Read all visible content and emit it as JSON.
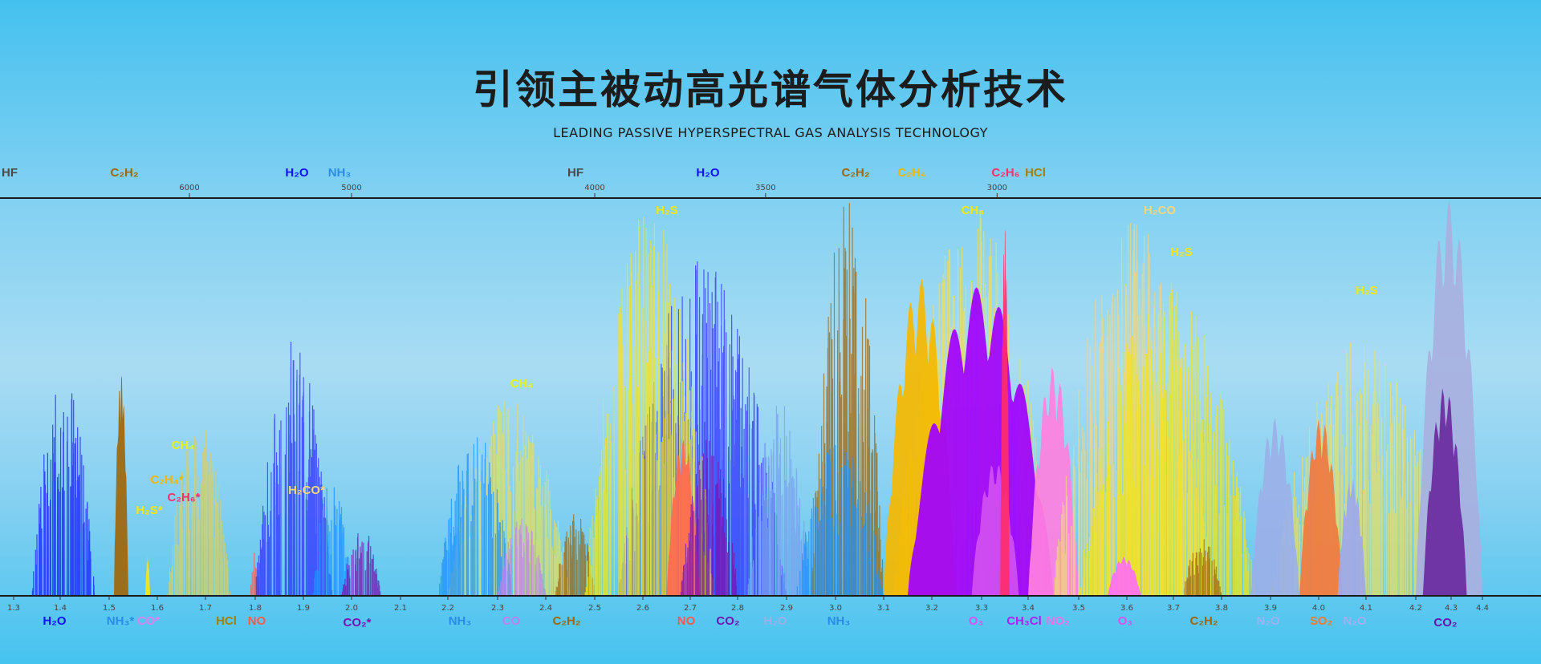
{
  "header": {
    "title": "引领主被动高光谱气体分析技术",
    "subtitle": "LEADING PASSIVE HYPERSPECTRAL GAS ANALYSIS TECHNOLOGY"
  },
  "chart_data": {
    "type": "area",
    "title": "",
    "xlabel": "",
    "ylabel": "",
    "x_axis_bottom": {
      "unit_hidden": "µm",
      "range": [
        1.3,
        4.4
      ],
      "tick_labels": [
        "1.3",
        "1.4",
        "1.5",
        "1.6",
        "1.7",
        "1.8",
        "1.9",
        "2.0",
        "2.1",
        "2.2",
        "2.3",
        "2.4",
        "2.5",
        "2.6",
        "2.7",
        "2.8",
        "2.9",
        "3.0",
        "3.1",
        "3.2",
        "3.3",
        "3.4",
        "3.5",
        "3.6",
        "3.7",
        "3.8",
        "3.9",
        "4.0",
        "4.1",
        "4.2",
        "4.3",
        "4.4"
      ]
    },
    "x_axis_top": {
      "tick_labels": [
        "6000",
        "5000",
        "4000",
        "3500",
        "3000"
      ]
    },
    "y_range": [
      0,
      1
    ],
    "grid": false,
    "bands": [
      {
        "gas": "H2O",
        "color": "#1a1aff",
        "from": 1.34,
        "to": 1.47,
        "peak": 0.58,
        "style": "lines"
      },
      {
        "gas": "C2H2",
        "color": "#a0660a",
        "from": 1.51,
        "to": 1.54,
        "peak": 0.57,
        "style": "solid"
      },
      {
        "gas": "H2S",
        "color": "#f5e60f",
        "from": 1.575,
        "to": 1.585,
        "peak": 0.1,
        "style": "solid"
      },
      {
        "gas": "CH4",
        "color": "#d8d060",
        "from": 1.62,
        "to": 1.75,
        "peak": 0.45,
        "style": "lines"
      },
      {
        "gas": "NO",
        "color": "#ff5a4a",
        "from": 1.79,
        "to": 1.81,
        "peak": 0.12,
        "style": "lines"
      },
      {
        "gas": "H2O",
        "color": "#3030ff",
        "from": 1.8,
        "to": 1.96,
        "peak": 0.65,
        "style": "lines"
      },
      {
        "gas": "NH3",
        "color": "#1e90ff",
        "from": 1.92,
        "to": 2.0,
        "peak": 0.3,
        "style": "lines"
      },
      {
        "gas": "CO2",
        "color": "#7a10b0",
        "from": 1.98,
        "to": 2.06,
        "peak": 0.18,
        "style": "lines"
      },
      {
        "gas": "CH4",
        "color": "#e0e060",
        "from": 2.2,
        "to": 2.45,
        "peak": 0.5,
        "style": "lines"
      },
      {
        "gas": "NH3",
        "color": "#1e90ff",
        "from": 2.18,
        "to": 2.33,
        "peak": 0.42,
        "style": "lines"
      },
      {
        "gas": "CO",
        "color": "#c080f0",
        "from": 2.3,
        "to": 2.4,
        "peak": 0.2,
        "style": "lines"
      },
      {
        "gas": "C2H2",
        "color": "#a0660a",
        "from": 2.42,
        "to": 2.5,
        "peak": 0.22,
        "style": "lines"
      },
      {
        "gas": "H2O",
        "color": "#3030ff",
        "from": 2.55,
        "to": 2.9,
        "peak": 0.85,
        "style": "lines"
      },
      {
        "gas": "H2S",
        "color": "#f5e60f",
        "from": 2.48,
        "to": 2.75,
        "peak": 0.98,
        "style": "lines"
      },
      {
        "gas": "NO",
        "color": "#ff6a50",
        "from": 2.65,
        "to": 2.72,
        "peak": 0.4,
        "style": "solid"
      },
      {
        "gas": "CO2",
        "color": "#7a10b0",
        "from": 2.68,
        "to": 2.8,
        "peak": 0.4,
        "style": "lines"
      },
      {
        "gas": "H2O",
        "color": "#7aa0ee",
        "from": 2.82,
        "to": 2.95,
        "peak": 0.5,
        "style": "lines"
      },
      {
        "gas": "C2H2",
        "color": "#a0660a",
        "from": 2.95,
        "to": 3.1,
        "peak": 1.0,
        "style": "lines"
      },
      {
        "gas": "NH3",
        "color": "#1e90ff",
        "from": 2.92,
        "to": 3.1,
        "peak": 0.4,
        "style": "lines"
      },
      {
        "gas": "CH4",
        "color": "#f0e050",
        "from": 3.12,
        "to": 3.45,
        "peak": 0.98,
        "style": "lines"
      },
      {
        "gas": "C2H4",
        "color": "#f5b800",
        "from": 3.1,
        "to": 3.25,
        "peak": 0.8,
        "style": "solid"
      },
      {
        "gas": "O3",
        "color": "#a000ff",
        "from": 3.15,
        "to": 3.45,
        "peak": 0.78,
        "style": "solid"
      },
      {
        "gas": "CH3Cl",
        "color": "#d050f0",
        "from": 3.28,
        "to": 3.38,
        "peak": 0.34,
        "style": "solid"
      },
      {
        "gas": "C2H6",
        "color": "#ff2d6a",
        "from": 3.34,
        "to": 3.36,
        "peak": 0.95,
        "style": "solid"
      },
      {
        "gas": "NO2",
        "color": "#ff80e0",
        "from": 3.4,
        "to": 3.5,
        "peak": 0.58,
        "style": "solid"
      },
      {
        "gas": "H2CO",
        "color": "#f2d77a",
        "from": 3.45,
        "to": 3.78,
        "peak": 0.95,
        "style": "lines"
      },
      {
        "gas": "H2S",
        "color": "#f5e60f",
        "from": 3.5,
        "to": 3.87,
        "peak": 0.8,
        "style": "lines"
      },
      {
        "gas": "O3",
        "color": "#ff70f0",
        "from": 3.56,
        "to": 3.63,
        "peak": 0.1,
        "style": "solid"
      },
      {
        "gas": "C2H2",
        "color": "#a0660a",
        "from": 3.72,
        "to": 3.8,
        "peak": 0.15,
        "style": "lines"
      },
      {
        "gas": "H2S",
        "color": "#e8e060",
        "from": 3.9,
        "to": 4.3,
        "peak": 0.65,
        "style": "lines"
      },
      {
        "gas": "N2O",
        "color": "#9bb0e8",
        "from": 3.86,
        "to": 3.96,
        "peak": 0.45,
        "style": "solid"
      },
      {
        "gas": "SO2",
        "color": "#f07a40",
        "from": 3.96,
        "to": 4.05,
        "peak": 0.45,
        "style": "solid"
      },
      {
        "gas": "N2O",
        "color": "#a0a8e8",
        "from": 4.04,
        "to": 4.1,
        "peak": 0.3,
        "style": "solid"
      },
      {
        "gas": "CO2",
        "color": "#a8b0e0",
        "from": 4.2,
        "to": 4.4,
        "peak": 1.0,
        "style": "solid"
      },
      {
        "gas": "CO2",
        "color": "#6a2aa0",
        "from": 4.22,
        "to": 4.35,
        "peak": 0.53,
        "style": "solid"
      }
    ],
    "labels_top": [
      {
        "text": "HF",
        "color": "#4a4a4a"
      },
      {
        "text": "C₂H₂",
        "color": "#a0660a"
      },
      {
        "text": "H₂O",
        "color": "#1010ff"
      },
      {
        "text": "NH₃",
        "color": "#2a8ce8"
      },
      {
        "text": "HF",
        "color": "#4a4a4a"
      },
      {
        "text": "H₂O",
        "color": "#1010ff"
      },
      {
        "text": "C₂H₂",
        "color": "#a0660a"
      },
      {
        "text": "C₂H₄",
        "color": "#f5b800"
      },
      {
        "text": "C₂H₆",
        "color": "#ff2d6a"
      },
      {
        "text": "HCl",
        "color": "#a08010"
      }
    ],
    "labels_inside": [
      {
        "text": "CH₄",
        "color": "#e8f020"
      },
      {
        "text": "C₂H₄*",
        "color": "#f5b800"
      },
      {
        "text": "C₂H₆*",
        "color": "#ff2d6a"
      },
      {
        "text": "H₂S*",
        "color": "#f5e60f"
      },
      {
        "text": "H₂CO*",
        "color": "#f2d77a"
      },
      {
        "text": "CH₄",
        "color": "#e8f020"
      },
      {
        "text": "H₂S",
        "color": "#f5e60f"
      },
      {
        "text": "CH₄",
        "color": "#f5e60f"
      },
      {
        "text": "H₂CO",
        "color": "#f2d77a"
      },
      {
        "text": "H₂S",
        "color": "#f5e60f"
      },
      {
        "text": "H₂S",
        "color": "#f5e60f"
      }
    ],
    "labels_bottom": [
      {
        "text": "H₂O",
        "color": "#1010ff"
      },
      {
        "text": "NH₃*",
        "color": "#2a8ce8"
      },
      {
        "text": "CO*",
        "color": "#e080f0"
      },
      {
        "text": "HCl",
        "color": "#a08010"
      },
      {
        "text": "NO",
        "color": "#ff5a4a"
      },
      {
        "text": "CO₂*",
        "color": "#7a10b0"
      },
      {
        "text": "NH₃",
        "color": "#2a8ce8"
      },
      {
        "text": "CO",
        "color": "#c080f0"
      },
      {
        "text": "C₂H₂",
        "color": "#a0660a"
      },
      {
        "text": "NO",
        "color": "#ff5a4a"
      },
      {
        "text": "CO₂",
        "color": "#7a10b0"
      },
      {
        "text": "H₂O",
        "color": "#9bb0e8"
      },
      {
        "text": "NH₃",
        "color": "#2a8ce8"
      },
      {
        "text": "O₃",
        "color": "#e050f0"
      },
      {
        "text": "CH₃Cl",
        "color": "#b020ff"
      },
      {
        "text": "NO₂",
        "color": "#f070e8"
      },
      {
        "text": "O₃",
        "color": "#e050f0"
      },
      {
        "text": "C₂H₂",
        "color": "#a0660a"
      },
      {
        "text": "N₂O",
        "color": "#a0b0f0"
      },
      {
        "text": "SO₂",
        "color": "#f07a30"
      },
      {
        "text": "N₂O",
        "color": "#a0b0f0"
      },
      {
        "text": "CO₂",
        "color": "#6a10b0"
      }
    ]
  }
}
